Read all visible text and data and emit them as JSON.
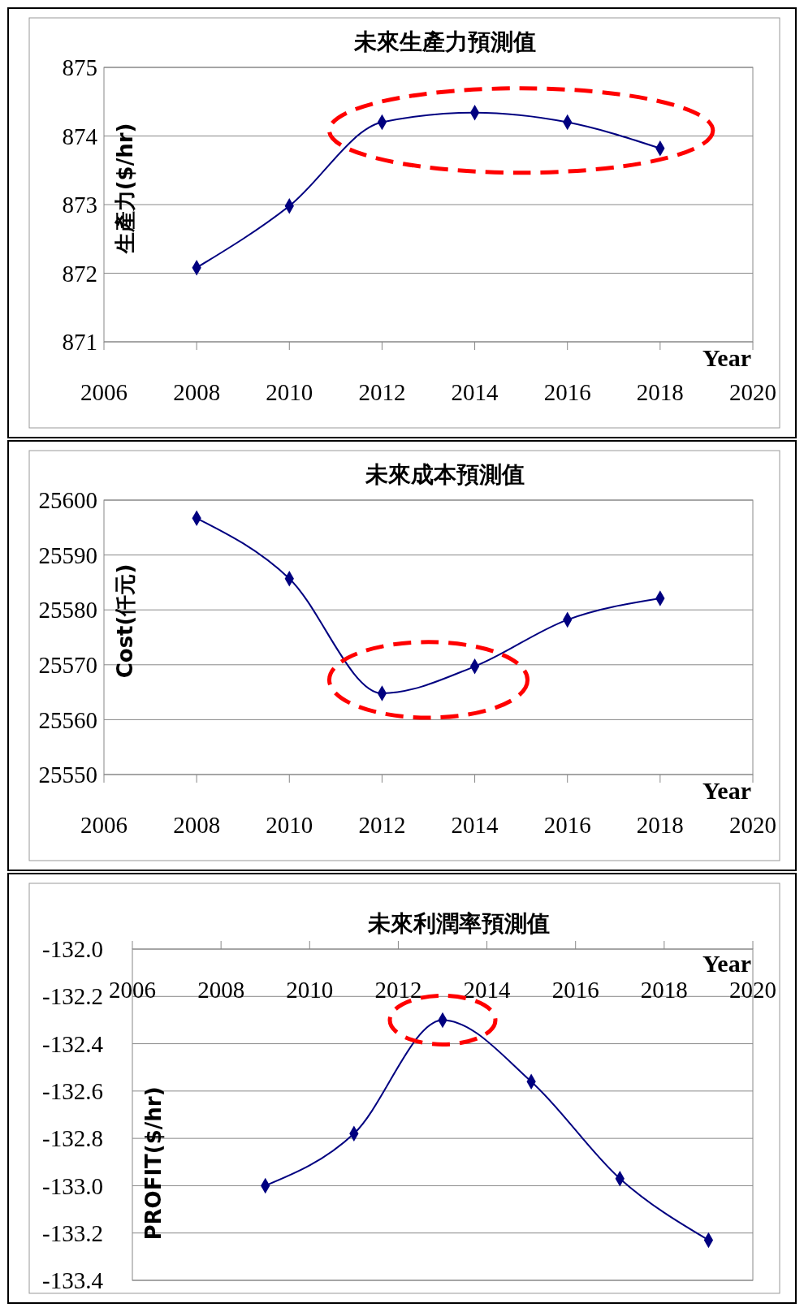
{
  "chart_data": [
    {
      "type": "line",
      "title": "未來生產力預測值",
      "xlabel": "Year",
      "ylabel": "生產力($/hr)",
      "x": [
        2008,
        2010,
        2012,
        2014,
        2016,
        2018
      ],
      "series": [
        {
          "color": "#000080",
          "values": [
            872.08,
            872.98,
            874.2,
            874.34,
            874.2,
            873.82
          ]
        }
      ],
      "xlim": [
        2006,
        2020
      ],
      "xticks": [
        2006,
        2008,
        2010,
        2012,
        2014,
        2016,
        2018,
        2020
      ],
      "ylim": [
        871,
        875
      ],
      "yticks": [
        871,
        872,
        873,
        874,
        875
      ],
      "grid": "y",
      "marker": "diamond",
      "line_style": "solid"
    },
    {
      "type": "line",
      "title": "未來成本預測值",
      "xlabel": "Year",
      "ylabel": "Cost(仟元)",
      "x": [
        2008,
        2010,
        2012,
        2014,
        2016,
        2018
      ],
      "series": [
        {
          "color": "#000080",
          "values": [
            25596.7,
            25585.7,
            25564.8,
            25569.7,
            25578.2,
            25582.1
          ]
        }
      ],
      "xlim": [
        2006,
        2020
      ],
      "xticks": [
        2006,
        2008,
        2010,
        2012,
        2014,
        2016,
        2018,
        2020
      ],
      "ylim": [
        25550,
        25600
      ],
      "yticks": [
        25550,
        25560,
        25570,
        25580,
        25590,
        25600
      ],
      "grid": "y",
      "marker": "diamond",
      "line_style": "solid"
    },
    {
      "type": "line",
      "title": "未來利潤率預測值",
      "xlabel": "Year",
      "ylabel": "PROFIT($/hr)",
      "x": [
        2009,
        2011,
        2013,
        2015,
        2017,
        2019
      ],
      "series": [
        {
          "color": "#000080",
          "values": [
            -133.0,
            -132.78,
            -132.3,
            -132.56,
            -132.97,
            -133.23
          ]
        }
      ],
      "xlim": [
        2006,
        2020
      ],
      "xticks": [
        2006,
        2008,
        2010,
        2012,
        2014,
        2016,
        2018,
        2020
      ],
      "ylim": [
        -133.4,
        -132.0
      ],
      "yticks": [
        {
          "value": -133.4,
          "label": "-133.4"
        },
        {
          "value": -133.2,
          "label": "-133.2"
        },
        {
          "value": -133.0,
          "label": "-133.0"
        },
        {
          "value": -132.8,
          "label": "-132.8"
        },
        {
          "value": -132.6,
          "label": "-132.6"
        },
        {
          "value": -132.4,
          "label": "-132.4"
        },
        {
          "value": -132.2,
          "label": "-132.2"
        },
        {
          "value": -132.0,
          "label": "-132.0"
        }
      ],
      "grid": "y",
      "marker": "diamond",
      "line_style": "solid"
    }
  ]
}
